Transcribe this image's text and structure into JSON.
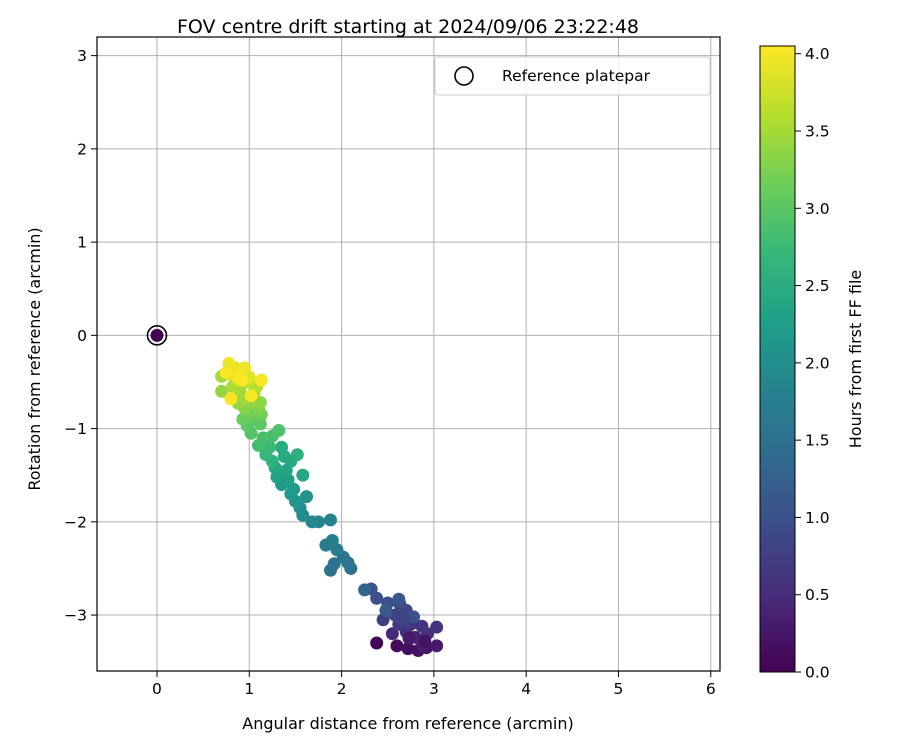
{
  "chart_data": {
    "type": "scatter",
    "title": "FOV centre drift starting at 2024/09/06 23:22:48",
    "xlabel": "Angular distance from reference (arcmin)",
    "ylabel": "Rotation from reference (arcmin)",
    "xlim": [
      -0.65,
      6.1
    ],
    "ylim": [
      -3.6,
      3.2
    ],
    "xticks": [
      0,
      1,
      2,
      3,
      4,
      5,
      6
    ],
    "yticks": [
      -3,
      -2,
      -1,
      0,
      1,
      2,
      3
    ],
    "grid": true,
    "legend": {
      "placement": "top-right",
      "entries": [
        "Reference platepar"
      ]
    },
    "colorbar": {
      "label": "Hours from first FF file",
      "range": [
        0.0,
        4.05
      ],
      "ticks": [
        "0.0",
        "0.5",
        "1.0",
        "1.5",
        "2.0",
        "2.5",
        "3.0",
        "3.5",
        "4.0"
      ],
      "colormap": "viridis"
    },
    "reference_point": {
      "x": 0,
      "y": 0,
      "hours": 0.0
    },
    "points": [
      [
        2.38,
        -3.3,
        0.05
      ],
      [
        2.6,
        -3.33,
        0.1
      ],
      [
        2.72,
        -3.36,
        0.15
      ],
      [
        2.83,
        -3.38,
        0.2
      ],
      [
        2.92,
        -3.35,
        0.25
      ],
      [
        3.03,
        -3.33,
        0.3
      ],
      [
        2.88,
        -3.32,
        0.35
      ],
      [
        2.8,
        -3.24,
        0.4
      ],
      [
        2.55,
        -3.2,
        0.45
      ],
      [
        2.7,
        -3.18,
        0.5
      ],
      [
        2.93,
        -3.2,
        0.55
      ],
      [
        3.03,
        -3.13,
        0.6
      ],
      [
        2.87,
        -3.12,
        0.6
      ],
      [
        2.75,
        -3.1,
        0.65
      ],
      [
        2.62,
        -3.1,
        0.7
      ],
      [
        2.45,
        -3.05,
        0.75
      ],
      [
        2.58,
        -3.0,
        0.8
      ],
      [
        2.7,
        -2.95,
        0.85
      ],
      [
        2.63,
        -2.88,
        0.9
      ],
      [
        2.5,
        -2.87,
        0.95
      ],
      [
        2.38,
        -2.82,
        1.0
      ],
      [
        2.32,
        -2.72,
        1.05
      ],
      [
        2.62,
        -2.83,
        1.1
      ],
      [
        2.48,
        -2.95,
        1.15
      ],
      [
        2.78,
        -3.02,
        1.0
      ],
      [
        2.67,
        -3.05,
        0.8
      ],
      [
        2.73,
        -3.25,
        0.3
      ],
      [
        2.9,
        -3.28,
        0.2
      ],
      [
        2.25,
        -2.73,
        1.3
      ],
      [
        2.1,
        -2.5,
        1.5
      ],
      [
        2.07,
        -2.44,
        1.55
      ],
      [
        2.02,
        -2.38,
        1.6
      ],
      [
        1.92,
        -2.45,
        1.6
      ],
      [
        1.88,
        -2.52,
        1.55
      ],
      [
        1.95,
        -2.3,
        1.7
      ],
      [
        1.9,
        -2.2,
        1.75
      ],
      [
        1.83,
        -2.25,
        1.7
      ],
      [
        1.88,
        -1.98,
        1.8
      ],
      [
        1.75,
        -2.0,
        1.85
      ],
      [
        1.68,
        -2.0,
        1.9
      ],
      [
        1.58,
        -1.93,
        1.95
      ],
      [
        1.55,
        -1.85,
        2.0
      ],
      [
        1.62,
        -1.73,
        2.05
      ],
      [
        1.5,
        -1.78,
        2.1
      ],
      [
        1.45,
        -1.7,
        2.15
      ],
      [
        1.35,
        -1.6,
        2.2
      ],
      [
        1.42,
        -1.55,
        2.25
      ],
      [
        1.3,
        -1.52,
        2.3
      ],
      [
        1.48,
        -1.65,
        2.2
      ],
      [
        1.4,
        -1.45,
        2.35
      ],
      [
        1.28,
        -1.42,
        2.4
      ],
      [
        1.38,
        -1.3,
        2.45
      ],
      [
        1.45,
        -1.35,
        2.45
      ],
      [
        1.35,
        -1.2,
        2.5
      ],
      [
        1.52,
        -1.28,
        2.55
      ],
      [
        1.58,
        -1.5,
        2.4
      ],
      [
        1.25,
        -1.35,
        2.6
      ],
      [
        1.18,
        -1.28,
        2.7
      ],
      [
        1.22,
        -1.2,
        2.75
      ],
      [
        1.1,
        -1.18,
        2.8
      ],
      [
        1.15,
        -1.1,
        2.85
      ],
      [
        1.25,
        -1.08,
        2.85
      ],
      [
        1.32,
        -1.02,
        2.9
      ],
      [
        1.02,
        -1.05,
        2.95
      ],
      [
        0.98,
        -0.97,
        3.0
      ],
      [
        1.12,
        -0.95,
        3.0
      ],
      [
        1.05,
        -0.9,
        3.05
      ],
      [
        0.93,
        -0.9,
        3.1
      ],
      [
        1.13,
        -0.85,
        3.15
      ],
      [
        1.0,
        -0.83,
        3.2
      ],
      [
        1.1,
        -0.78,
        3.25
      ],
      [
        0.95,
        -0.78,
        3.3
      ],
      [
        1.12,
        -0.72,
        3.35
      ],
      [
        1.03,
        -0.72,
        3.35
      ],
      [
        0.88,
        -0.73,
        3.4
      ],
      [
        0.95,
        -0.68,
        3.45
      ],
      [
        1.05,
        -0.62,
        3.5
      ],
      [
        0.9,
        -0.6,
        3.5
      ],
      [
        0.7,
        -0.6,
        3.4
      ],
      [
        0.82,
        -0.55,
        3.55
      ],
      [
        1.08,
        -0.55,
        3.6
      ],
      [
        0.98,
        -0.5,
        3.65
      ],
      [
        0.88,
        -0.48,
        3.7
      ],
      [
        0.7,
        -0.44,
        3.5
      ],
      [
        0.8,
        -0.42,
        3.8
      ],
      [
        0.92,
        -0.4,
        3.85
      ],
      [
        1.0,
        -0.45,
        3.85
      ],
      [
        0.85,
        -0.35,
        3.9
      ],
      [
        0.95,
        -0.35,
        3.95
      ],
      [
        0.78,
        -0.3,
        3.95
      ],
      [
        0.88,
        -0.45,
        4.0
      ],
      [
        1.02,
        -0.65,
        4.0
      ],
      [
        1.13,
        -0.48,
        4.02
      ],
      [
        0.8,
        -0.68,
        4.02
      ],
      [
        0.92,
        -0.48,
        4.03
      ],
      [
        0.75,
        -0.4,
        4.01
      ]
    ]
  }
}
